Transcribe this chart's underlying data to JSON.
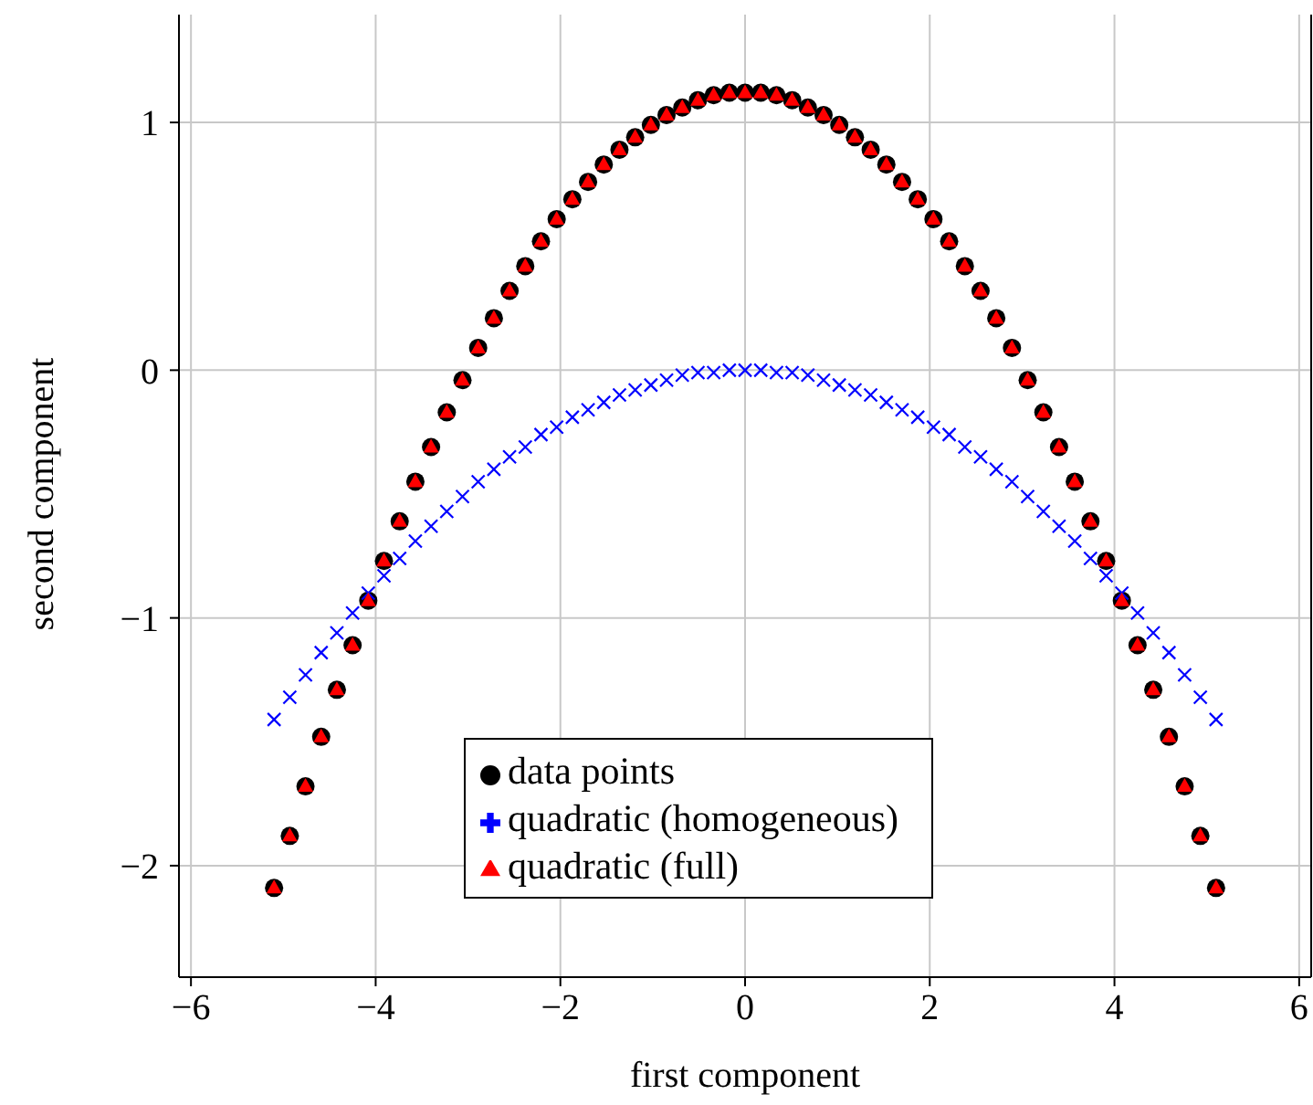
{
  "chart_data": {
    "type": "scatter",
    "xlabel": "first component",
    "ylabel": "second component",
    "x": [
      -5.1,
      -4.93,
      -4.76,
      -4.59,
      -4.42,
      -4.25,
      -4.08,
      -3.91,
      -3.74,
      -3.57,
      -3.4,
      -3.23,
      -3.06,
      -2.89,
      -2.72,
      -2.55,
      -2.38,
      -2.21,
      -2.04,
      -1.87,
      -1.7,
      -1.53,
      -1.36,
      -1.19,
      -1.02,
      -0.85,
      -0.68,
      -0.51,
      -0.34,
      -0.17,
      0,
      0.17,
      0.34,
      0.51,
      0.68,
      0.85,
      1.02,
      1.19,
      1.36,
      1.53,
      1.7,
      1.87,
      2.04,
      2.21,
      2.38,
      2.55,
      2.72,
      2.89,
      3.06,
      3.23,
      3.4,
      3.57,
      3.74,
      3.91,
      4.08,
      4.25,
      4.42,
      4.59,
      4.76,
      4.93,
      5.1
    ],
    "series": [
      {
        "name": "data points",
        "color": "#000000",
        "marker": "circle",
        "values": [
          -2.09,
          -1.88,
          -1.68,
          -1.48,
          -1.29,
          -1.11,
          -0.93,
          -0.77,
          -0.61,
          -0.45,
          -0.31,
          -0.17,
          -0.04,
          0.09,
          0.21,
          0.32,
          0.42,
          0.52,
          0.61,
          0.69,
          0.76,
          0.83,
          0.89,
          0.94,
          0.99,
          1.03,
          1.06,
          1.09,
          1.11,
          1.12,
          1.12,
          1.12,
          1.11,
          1.09,
          1.06,
          1.03,
          0.99,
          0.94,
          0.89,
          0.83,
          0.76,
          0.69,
          0.61,
          0.52,
          0.42,
          0.32,
          0.21,
          0.09,
          -0.04,
          -0.17,
          -0.31,
          -0.45,
          -0.61,
          -0.77,
          -0.93,
          -1.11,
          -1.29,
          -1.48,
          -1.68,
          -1.88,
          -2.09
        ]
      },
      {
        "name": "quadratic (homogeneous)",
        "color": "#0000ff",
        "marker": "cross",
        "values": [
          -1.41,
          -1.32,
          -1.23,
          -1.14,
          -1.06,
          -0.98,
          -0.9,
          -0.83,
          -0.76,
          -0.69,
          -0.63,
          -0.57,
          -0.51,
          -0.45,
          -0.4,
          -0.35,
          -0.31,
          -0.26,
          -0.23,
          -0.19,
          -0.16,
          -0.13,
          -0.1,
          -0.08,
          -0.06,
          -0.04,
          -0.02,
          -0.01,
          -0.01,
          0,
          0,
          0,
          -0.01,
          -0.01,
          -0.02,
          -0.04,
          -0.06,
          -0.08,
          -0.1,
          -0.13,
          -0.16,
          -0.19,
          -0.23,
          -0.26,
          -0.31,
          -0.35,
          -0.4,
          -0.45,
          -0.51,
          -0.57,
          -0.63,
          -0.69,
          -0.76,
          -0.83,
          -0.9,
          -0.98,
          -1.06,
          -1.14,
          -1.23,
          -1.32,
          -1.41
        ]
      },
      {
        "name": "quadratic (full)",
        "color": "#ff0000",
        "marker": "triangle",
        "values": [
          -2.09,
          -1.88,
          -1.68,
          -1.48,
          -1.29,
          -1.11,
          -0.93,
          -0.77,
          -0.61,
          -0.45,
          -0.31,
          -0.17,
          -0.04,
          0.09,
          0.21,
          0.32,
          0.42,
          0.52,
          0.61,
          0.69,
          0.76,
          0.83,
          0.89,
          0.94,
          0.99,
          1.03,
          1.06,
          1.09,
          1.11,
          1.12,
          1.12,
          1.12,
          1.11,
          1.09,
          1.06,
          1.03,
          0.99,
          0.94,
          0.89,
          0.83,
          0.76,
          0.69,
          0.61,
          0.52,
          0.42,
          0.32,
          0.21,
          0.09,
          -0.04,
          -0.17,
          -0.31,
          -0.45,
          -0.61,
          -0.77,
          -0.93,
          -1.11,
          -1.29,
          -1.48,
          -1.68,
          -1.88,
          -2.09
        ]
      }
    ],
    "xlim": [
      -6.13,
      6.13
    ],
    "xticks": [
      {
        "value": -6,
        "label": "−6"
      },
      {
        "value": -4,
        "label": "−4"
      },
      {
        "value": -2,
        "label": "−2"
      },
      0,
      2,
      4,
      6
    ],
    "ylim": [
      -2.45,
      1.45
    ],
    "yticks": [
      {
        "value": -2,
        "label": "−2"
      },
      {
        "value": -1,
        "label": "−1"
      },
      0,
      1
    ],
    "grid": true,
    "legend": "bottom"
  }
}
